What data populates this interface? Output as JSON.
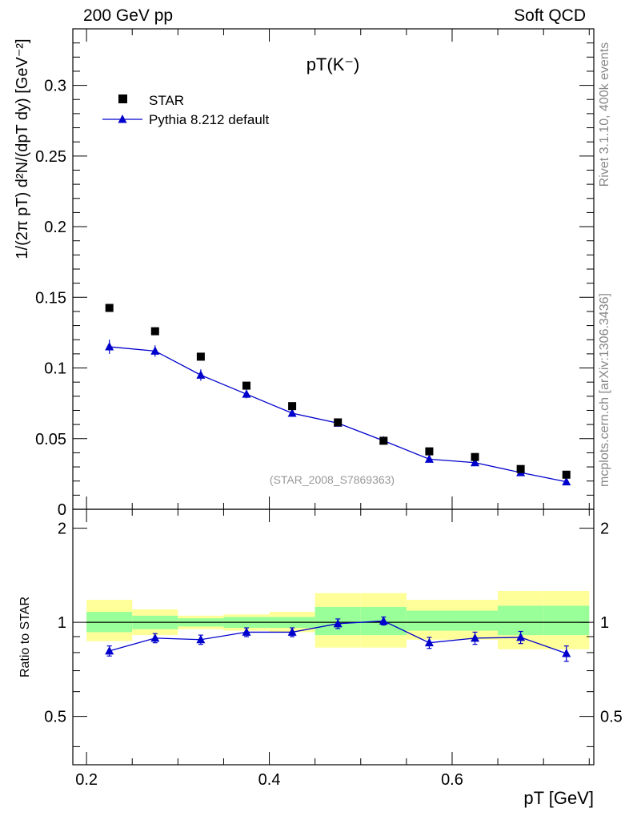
{
  "header": {
    "left": "200 GeV pp",
    "right": "Soft QCD"
  },
  "side_labels": {
    "top": "Rivet 3.1.10,  400k events",
    "bottom": "mcplots.cern.ch [arXiv:1306.3436]"
  },
  "colors": {
    "data": "#000000",
    "mc": "#0000cc",
    "band_inner": "#99ff99",
    "band_outer": "#ffff99"
  },
  "chart_data": [
    {
      "type": "scatter",
      "title": "pT(K⁻)",
      "ylabel": "1/(2π pT) d²N/(dpT dy) [GeV⁻²]",
      "ylim": [
        0,
        0.34
      ],
      "xlim": [
        0.185,
        0.755
      ],
      "yticks": [
        0,
        0.05,
        0.1,
        0.15,
        0.2,
        0.25,
        0.3
      ],
      "ytick_labels": [
        "0",
        "0.05",
        "0.1",
        "0.15",
        "0.2",
        "0.25",
        "0.3"
      ],
      "legend_position": "top-left",
      "watermark": "(STAR_2008_S7869363)",
      "x": [
        0.225,
        0.275,
        0.325,
        0.375,
        0.425,
        0.475,
        0.525,
        0.575,
        0.625,
        0.675,
        0.725
      ],
      "series": [
        {
          "name": "STAR",
          "marker": "square",
          "values": [
            0.1425,
            0.126,
            0.108,
            0.0875,
            0.073,
            0.0615,
            0.0485,
            0.041,
            0.037,
            0.0285,
            0.0245
          ]
        },
        {
          "name": "Pythia 8.212 default",
          "marker": "triangle",
          "values": [
            0.115,
            0.112,
            0.095,
            0.0815,
            0.068,
            0.061,
            0.0485,
            0.0355,
            0.033,
            0.026,
            0.0195
          ],
          "errors": [
            0.005,
            0.004,
            0.004,
            0.003,
            0.002,
            0.002,
            0.002,
            0.002,
            0.002,
            0.002,
            0.002
          ]
        }
      ]
    },
    {
      "type": "line",
      "ylabel": "Ratio to STAR",
      "xlabel": "pT [GeV]",
      "xlim": [
        0.185,
        0.755
      ],
      "ylim": [
        0.35,
        2.3
      ],
      "yscale": "log",
      "yticks": [
        0.5,
        1,
        2
      ],
      "ytick_labels": [
        "0.5",
        "1",
        "2"
      ],
      "xticks": [
        0.2,
        0.4,
        0.6
      ],
      "xtick_labels": [
        "0.2",
        "0.4",
        "0.6"
      ],
      "reference_line": 1,
      "x": [
        0.225,
        0.275,
        0.325,
        0.375,
        0.425,
        0.475,
        0.525,
        0.575,
        0.625,
        0.675,
        0.725
      ],
      "bin_edges": [
        0.2,
        0.25,
        0.3,
        0.35,
        0.4,
        0.45,
        0.5,
        0.55,
        0.6,
        0.65,
        0.7,
        0.75
      ],
      "ratio": [
        0.81,
        0.89,
        0.88,
        0.93,
        0.93,
        0.99,
        1.01,
        0.86,
        0.89,
        0.895,
        0.795
      ],
      "ratio_err": [
        0.03,
        0.03,
        0.03,
        0.03,
        0.03,
        0.035,
        0.03,
        0.035,
        0.04,
        0.04,
        0.045
      ],
      "band_inner": [
        [
          0.93,
          1.08
        ],
        [
          0.95,
          1.05
        ],
        [
          0.97,
          1.03
        ],
        [
          0.96,
          1.04
        ],
        [
          0.96,
          1.04
        ],
        [
          0.91,
          1.12
        ],
        [
          0.91,
          1.12
        ],
        [
          0.94,
          1.09
        ],
        [
          0.94,
          1.09
        ],
        [
          0.91,
          1.13
        ],
        [
          0.91,
          1.13
        ]
      ],
      "band_outer": [
        [
          0.87,
          1.18
        ],
        [
          0.91,
          1.1
        ],
        [
          0.95,
          1.05
        ],
        [
          0.94,
          1.06
        ],
        [
          0.93,
          1.08
        ],
        [
          0.83,
          1.24
        ],
        [
          0.83,
          1.24
        ],
        [
          0.88,
          1.18
        ],
        [
          0.88,
          1.18
        ],
        [
          0.82,
          1.26
        ],
        [
          0.82,
          1.26
        ]
      ]
    }
  ]
}
